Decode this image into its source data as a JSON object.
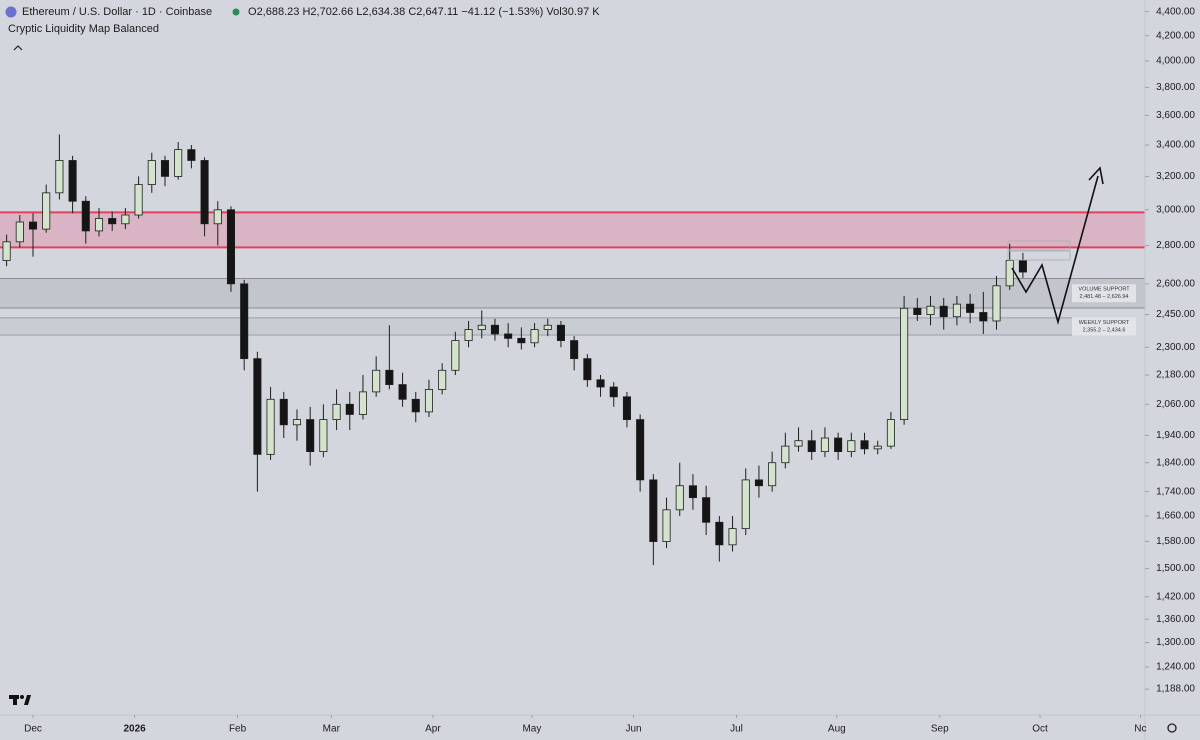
{
  "header": {
    "symbol": "Ethereum / U.S. Dollar · 1D · Coinbase",
    "open_prefix": "O",
    "open": "2,688.23",
    "high_prefix": "H",
    "high": "2,702.66",
    "low_prefix": "L",
    "low": "2,634.38",
    "close_prefix": "C",
    "close": "2,647.11",
    "change": "−41.12 (−1.53%)",
    "volume_prefix": "Vol",
    "volume": "30.97 K"
  },
  "indicator": "Cryptic Liquidity Map Balanced",
  "chart_data": {
    "type": "candlestick",
    "log_scale": true,
    "up_color": "#d3e3cc",
    "down_color": "#151515",
    "outline_color": "#1e1e1e",
    "ylim": [
      1130,
      4500
    ],
    "yticks": [
      {
        "value": 4400,
        "label": "4,400.00"
      },
      {
        "value": 4200,
        "label": "4,200.00"
      },
      {
        "value": 4000,
        "label": "4,000.00"
      },
      {
        "value": 3800,
        "label": "3,800.00"
      },
      {
        "value": 3600,
        "label": "3,600.00"
      },
      {
        "value": 3400,
        "label": "3,400.00"
      },
      {
        "value": 3200,
        "label": "3,200.00"
      },
      {
        "value": 3000,
        "label": "3,000.00"
      },
      {
        "value": 2800,
        "label": "2,800.00"
      },
      {
        "value": 2600,
        "label": "2,600.00"
      },
      {
        "value": 2450,
        "label": "2,450.00"
      },
      {
        "value": 2300,
        "label": "2,300.00"
      },
      {
        "value": 2180,
        "label": "2,180.00"
      },
      {
        "value": 2060,
        "label": "2,060.00"
      },
      {
        "value": 1940,
        "label": "1,940.00"
      },
      {
        "value": 1840,
        "label": "1,840.00"
      },
      {
        "value": 1740,
        "label": "1,740.00"
      },
      {
        "value": 1660,
        "label": "1,660.00"
      },
      {
        "value": 1580,
        "label": "1,580.00"
      },
      {
        "value": 1500,
        "label": "1,500.00"
      },
      {
        "value": 1420,
        "label": "1,420.00"
      },
      {
        "value": 1360,
        "label": "1,360.00"
      },
      {
        "value": 1300,
        "label": "1,300.00"
      },
      {
        "value": 1240,
        "label": "1,240.00"
      },
      {
        "value": 1188,
        "label": "1,188.00"
      }
    ],
    "xlim": [
      0,
      86.75
    ],
    "xticks": [
      {
        "value": 2.5,
        "label": "Dec"
      },
      {
        "value": 10.2,
        "label": "2026"
      },
      {
        "value": 18.0,
        "label": "Feb"
      },
      {
        "value": 25.1,
        "label": "Mar"
      },
      {
        "value": 32.8,
        "label": "Apr"
      },
      {
        "value": 40.3,
        "label": "May"
      },
      {
        "value": 48.0,
        "label": "Jun"
      },
      {
        "value": 55.8,
        "label": "Jul"
      },
      {
        "value": 63.4,
        "label": "Aug"
      },
      {
        "value": 71.2,
        "label": "Sep"
      },
      {
        "value": 78.8,
        "label": "Oct"
      },
      {
        "value": 86.4,
        "label": "Nc"
      }
    ],
    "open": [
      2720,
      2820,
      2930,
      2890,
      3100,
      3300,
      3050,
      2880,
      2950,
      2920,
      2970,
      3150,
      3300,
      3200,
      3370,
      3300,
      2920,
      3000,
      2600,
      2250,
      1870,
      2080,
      1980,
      2000,
      1880,
      2000,
      2060,
      2020,
      2110,
      2200,
      2140,
      2080,
      2030,
      2120,
      2200,
      2330,
      2380,
      2400,
      2360,
      2340,
      2320,
      2380,
      2400,
      2330,
      2250,
      2160,
      2130,
      2090,
      2000,
      1780,
      1580,
      1680,
      1760,
      1720,
      1640,
      1570,
      1620,
      1780,
      1760,
      1840,
      1900,
      1920,
      1880,
      1930,
      1880,
      1920,
      1890,
      1900,
      2000,
      2480,
      2450,
      2490,
      2440,
      2500,
      2460,
      2420,
      2590,
      2720
    ],
    "high": [
      2860,
      2970,
      2980,
      3150,
      3470,
      3330,
      3080,
      3010,
      2990,
      3010,
      3200,
      3350,
      3330,
      3420,
      3400,
      3320,
      3050,
      3020,
      2620,
      2280,
      2130,
      2110,
      2040,
      2050,
      2060,
      2120,
      2110,
      2180,
      2260,
      2400,
      2190,
      2110,
      2160,
      2230,
      2370,
      2420,
      2470,
      2430,
      2410,
      2390,
      2410,
      2430,
      2420,
      2350,
      2270,
      2180,
      2150,
      2110,
      2020,
      1800,
      1720,
      1840,
      1800,
      1760,
      1660,
      1660,
      1820,
      1830,
      1880,
      1950,
      1970,
      1960,
      1970,
      1950,
      1950,
      1950,
      1920,
      2030,
      2540,
      2530,
      2540,
      2530,
      2540,
      2550,
      2560,
      2640,
      2810,
      2760
    ],
    "low": [
      2690,
      2790,
      2740,
      2870,
      3060,
      2980,
      2810,
      2850,
      2880,
      2890,
      2950,
      3100,
      3140,
      3180,
      3250,
      2850,
      2800,
      2560,
      2200,
      1740,
      1850,
      1930,
      1920,
      1830,
      1860,
      1960,
      1960,
      2000,
      2090,
      2120,
      2050,
      1990,
      2010,
      2100,
      2180,
      2300,
      2340,
      2330,
      2300,
      2290,
      2300,
      2350,
      2300,
      2200,
      2130,
      2090,
      2050,
      1970,
      1740,
      1510,
      1560,
      1660,
      1680,
      1600,
      1520,
      1550,
      1600,
      1720,
      1740,
      1820,
      1880,
      1850,
      1860,
      1850,
      1860,
      1870,
      1870,
      1890,
      1980,
      2420,
      2400,
      2380,
      2400,
      2410,
      2360,
      2380,
      2570,
      2630
    ],
    "close": [
      2820,
      2930,
      2890,
      3100,
      3300,
      3050,
      2880,
      2950,
      2920,
      2970,
      3150,
      3300,
      3200,
      3370,
      3300,
      2920,
      3000,
      2600,
      2250,
      1870,
      2080,
      1980,
      2000,
      1880,
      2000,
      2060,
      2020,
      2110,
      2200,
      2140,
      2080,
      2030,
      2120,
      2200,
      2330,
      2380,
      2400,
      2360,
      2340,
      2320,
      2380,
      2400,
      2330,
      2250,
      2160,
      2130,
      2090,
      2000,
      1780,
      1580,
      1680,
      1760,
      1720,
      1640,
      1570,
      1620,
      1780,
      1760,
      1840,
      1900,
      1920,
      1880,
      1930,
      1880,
      1920,
      1890,
      1900,
      2000,
      2480,
      2450,
      2490,
      2440,
      2500,
      2460,
      2420,
      2590,
      2720,
      2660
    ],
    "zones": [
      {
        "low": 2790,
        "high": 2985,
        "color": "#d9aebf",
        "border": "#e2405c"
      },
      {
        "name": "VOLUME SUPPORT",
        "range_label": "2,481.48 – 2,626.94",
        "low": 2481.48,
        "high": 2626.94,
        "color": "#bfc2c9",
        "border": "#8a8d94"
      },
      {
        "name": "WEEKLY SUPPORT",
        "range_label": "2,355.2 – 2,434.6",
        "low": 2355.2,
        "high": 2434.6,
        "color": "#c6cad1",
        "border": "#9a9ea6"
      }
    ]
  }
}
